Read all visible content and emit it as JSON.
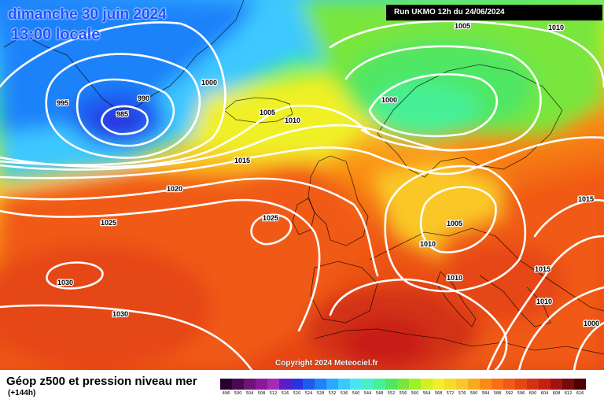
{
  "header": {
    "date": "dimanche 30 juin 2024",
    "time": "13:00 locale",
    "run": "Run UKMO 12h du 24/06/2024"
  },
  "copyright": "Copyright 2024 Meteociel.fr",
  "footer": {
    "title": "Géop z500 et pression niveau mer",
    "subtitle": "(+144h)"
  },
  "legend": {
    "labels": [
      "496",
      "500",
      "504",
      "508",
      "512",
      "516",
      "520",
      "524",
      "528",
      "532",
      "536",
      "540",
      "544",
      "548",
      "552",
      "556",
      "560",
      "564",
      "568",
      "572",
      "576",
      "580",
      "584",
      "588",
      "592",
      "596",
      "600",
      "604",
      "608",
      "612",
      "616"
    ],
    "colors": [
      "#28002e",
      "#4a0a52",
      "#6e1478",
      "#8a1a9a",
      "#a62ab8",
      "#5a1ec8",
      "#2a32e0",
      "#1e5af0",
      "#1e82fa",
      "#28aaff",
      "#3cc8ff",
      "#46e6f0",
      "#46f0c8",
      "#46f096",
      "#50e664",
      "#78e63c",
      "#a0f028",
      "#d2f01e",
      "#f0f028",
      "#f5dc28",
      "#fac828",
      "#faaa1e",
      "#fa8c14",
      "#fa6e14",
      "#f05a14",
      "#e64614",
      "#d23214",
      "#c81e14",
      "#a01410",
      "#780a0a",
      "#500000"
    ]
  },
  "isobars": [
    {
      "text": "995",
      "color": "#000000"
    },
    {
      "text": "990",
      "color": "#000000"
    },
    {
      "text": "985",
      "color": "#000000"
    },
    {
      "text": "1000",
      "color": "#000000"
    },
    {
      "text": "1005",
      "color": "#000000"
    },
    {
      "text": "1010",
      "color": "#000000"
    },
    {
      "text": "1015",
      "color": "#000000"
    },
    {
      "text": "1020",
      "color": "#000000"
    },
    {
      "text": "1025",
      "color": "#000000"
    },
    {
      "text": "1025",
      "color": "#000000"
    },
    {
      "text": "1030",
      "color": "#000000"
    },
    {
      "text": "1030",
      "color": "#000000"
    },
    {
      "text": "1005",
      "color": "#000000"
    },
    {
      "text": "1010",
      "color": "#000000"
    },
    {
      "text": "1000",
      "color": "#000000"
    },
    {
      "text": "1005",
      "color": "#000000"
    },
    {
      "text": "1010",
      "color": "#000000"
    },
    {
      "text": "1010",
      "color": "#000000"
    },
    {
      "text": "1015",
      "color": "#000000"
    },
    {
      "text": "1015",
      "color": "#000000"
    },
    {
      "text": "1010",
      "color": "#000000"
    },
    {
      "text": "1000",
      "color": "#000000"
    }
  ]
}
